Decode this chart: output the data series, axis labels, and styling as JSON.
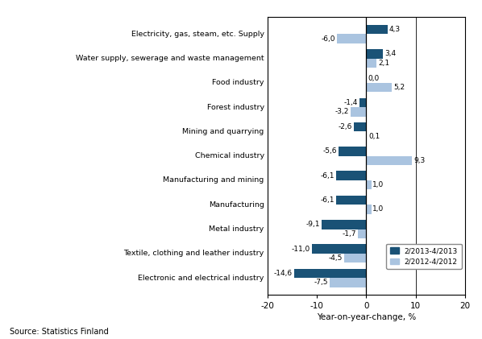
{
  "categories": [
    "Electronic and electrical industry",
    "Textile, clothing and leather industry",
    "Metal industry",
    "Manufacturing",
    "Manufacturing and mining",
    "Chemical industry",
    "Mining and quarrying",
    "Forest industry",
    "Food industry",
    "Water supply, sewerage and waste management",
    "Electricity, gas, steam, etc. Supply"
  ],
  "series_2013": [
    -14.6,
    -11.0,
    -9.1,
    -6.1,
    -6.1,
    -5.6,
    -2.6,
    -1.4,
    0.0,
    3.4,
    4.3
  ],
  "series_2012": [
    -7.5,
    -4.5,
    -1.7,
    1.0,
    1.0,
    9.3,
    0.1,
    -3.2,
    5.2,
    2.1,
    -6.0
  ],
  "color_2013": "#1a5276",
  "color_2012": "#aac4e0",
  "xlim": [
    -20,
    20
  ],
  "xticks": [
    -20,
    -10,
    0,
    10,
    20
  ],
  "xlabel": "Year-on-year-change, %",
  "legend_2013": "2/2013-4/2013",
  "legend_2012": "2/2012-4/2012",
  "source": "Source: Statistics Finland",
  "bar_height": 0.38,
  "background_color": "#ffffff"
}
